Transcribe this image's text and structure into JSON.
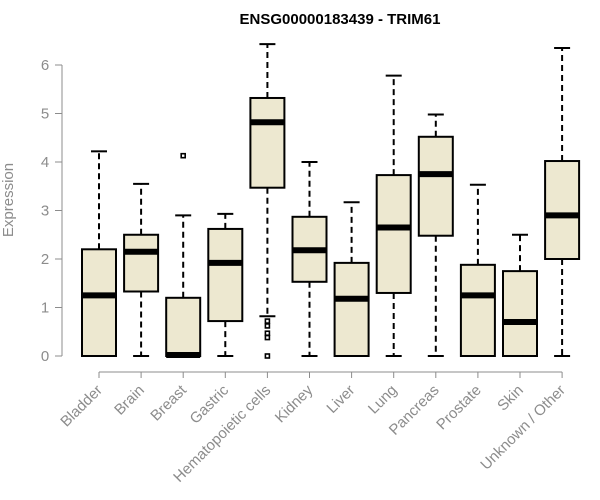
{
  "chart_data": {
    "type": "box",
    "title": "ENSG00000183439 - TRIM61",
    "ylabel": "Expression",
    "xlabel": "",
    "ylim": [
      0,
      6.5
    ],
    "yticks": [
      "0",
      "1",
      "2",
      "3",
      "4",
      "5",
      "6"
    ],
    "grid": false,
    "legend": "none",
    "box_fill": "#ede8d0",
    "categories": [
      "Bladder",
      "Brain",
      "Breast",
      "Gastric",
      "Hematopoietic cells",
      "Kidney",
      "Liver",
      "Lung",
      "Pancreas",
      "Prostate",
      "Skin",
      "Unknown / Other"
    ],
    "series": [
      {
        "category": "Bladder",
        "min": 0,
        "q1": 0,
        "median": 1.25,
        "q3": 2.2,
        "max": 4.22,
        "outliers": []
      },
      {
        "category": "Brain",
        "min": 0,
        "q1": 1.33,
        "median": 2.15,
        "q3": 2.5,
        "max": 3.55,
        "outliers": []
      },
      {
        "category": "Breast",
        "min": 0,
        "q1": 0,
        "median": 0.02,
        "q3": 1.2,
        "max": 2.9,
        "outliers": [
          4.13
        ]
      },
      {
        "category": "Gastric",
        "min": 0,
        "q1": 0.72,
        "median": 1.92,
        "q3": 2.62,
        "max": 2.93,
        "outliers": []
      },
      {
        "category": "Hematopoietic cells",
        "min": 0.82,
        "q1": 3.47,
        "median": 4.82,
        "q3": 5.32,
        "max": 6.43,
        "outliers": [
          0.72,
          0.62,
          0.47,
          0.38,
          0.0
        ]
      },
      {
        "category": "Kidney",
        "min": 0,
        "q1": 1.53,
        "median": 2.18,
        "q3": 2.87,
        "max": 4.0,
        "outliers": []
      },
      {
        "category": "Liver",
        "min": 0,
        "q1": 0,
        "median": 1.18,
        "q3": 1.92,
        "max": 3.17,
        "outliers": []
      },
      {
        "category": "Lung",
        "min": 0,
        "q1": 1.3,
        "median": 2.65,
        "q3": 3.73,
        "max": 5.78,
        "outliers": []
      },
      {
        "category": "Pancreas",
        "min": 0,
        "q1": 2.48,
        "median": 3.75,
        "q3": 4.52,
        "max": 4.98,
        "outliers": []
      },
      {
        "category": "Prostate",
        "min": 0,
        "q1": 0,
        "median": 1.25,
        "q3": 1.88,
        "max": 3.53,
        "outliers": []
      },
      {
        "category": "Skin",
        "min": 0,
        "q1": 0,
        "median": 0.7,
        "q3": 1.75,
        "max": 2.5,
        "outliers": []
      },
      {
        "category": "Unknown / Other",
        "min": 0,
        "q1": 2.0,
        "median": 2.9,
        "q3": 4.02,
        "max": 6.35,
        "outliers": []
      }
    ]
  }
}
